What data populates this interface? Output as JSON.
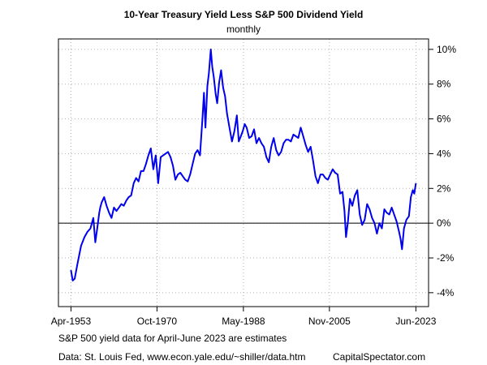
{
  "chart_data": {
    "type": "line",
    "title": "10-Year Treasury Yield Less S&P 500 Dividend Yield",
    "subtitle": "monthly",
    "xlabel": "",
    "ylabel": "",
    "x_ticks": [
      {
        "label": "Apr-1953",
        "year": 1953.25
      },
      {
        "label": "Oct-1970",
        "year": 1970.75
      },
      {
        "label": "May-1988",
        "year": 1988.33
      },
      {
        "label": "Nov-2005",
        "year": 2005.83
      },
      {
        "label": "Jun-2023",
        "year": 2023.42
      }
    ],
    "y_ticks": [
      {
        "label": "10%",
        "value": 10
      },
      {
        "label": "8%",
        "value": 8
      },
      {
        "label": "6%",
        "value": 6
      },
      {
        "label": "4%",
        "value": 4
      },
      {
        "label": "2%",
        "value": 2
      },
      {
        "label": "0%",
        "value": 0
      },
      {
        "label": "-2%",
        "value": -2
      },
      {
        "label": "-4%",
        "value": -4
      }
    ],
    "xlim": [
      1950.7,
      2026.0
    ],
    "ylim": [
      -4.8,
      10.6
    ],
    "grid": true,
    "axis_side": "right",
    "reference_line": 0,
    "line_color": "#0000ee",
    "series": [
      {
        "x": [
          1953.25,
          1953.6,
          1954.0,
          1954.6,
          1955.3,
          1956.0,
          1956.6,
          1957.2,
          1957.8,
          1958.2,
          1958.6,
          1959.0,
          1959.2,
          1959.5,
          1960.0,
          1960.5,
          1961.0,
          1961.5,
          1962.0,
          1962.5,
          1963.0,
          1963.5,
          1964.0,
          1964.5,
          1965.0,
          1965.5,
          1966.0,
          1966.5,
          1967.0,
          1967.5,
          1968.0,
          1968.5,
          1969.0,
          1969.5,
          1970.0,
          1970.5,
          1971.0,
          1971.5,
          1972.0,
          1972.5,
          1973.0,
          1973.5,
          1974.0,
          1974.5,
          1975.0,
          1975.5,
          1976.0,
          1976.5,
          1977.0,
          1977.5,
          1978.0,
          1978.5,
          1979.0,
          1979.5,
          1980.0,
          1980.3,
          1980.6,
          1981.0,
          1981.3,
          1981.7,
          1982.0,
          1982.3,
          1982.7,
          1983.0,
          1983.4,
          1983.8,
          1984.2,
          1984.6,
          1985.0,
          1985.5,
          1986.0,
          1986.5,
          1987.0,
          1987.4,
          1987.8,
          1988.2,
          1988.6,
          1989.0,
          1989.5,
          1990.0,
          1990.5,
          1991.0,
          1991.5,
          1992.0,
          1992.5,
          1993.0,
          1993.5,
          1994.0,
          1994.5,
          1995.0,
          1995.5,
          1996.0,
          1996.5,
          1997.0,
          1997.5,
          1998.0,
          1998.5,
          1999.0,
          1999.5,
          2000.0,
          2000.5,
          2001.0,
          2001.5,
          2002.0,
          2002.5,
          2003.0,
          2003.5,
          2004.0,
          2004.5,
          2005.0,
          2005.5,
          2006.0,
          2006.5,
          2007.0,
          2007.5,
          2008.0,
          2008.5,
          2008.9,
          2009.2,
          2009.6,
          2010.0,
          2010.5,
          2011.0,
          2011.5,
          2012.0,
          2012.5,
          2013.0,
          2013.5,
          2014.0,
          2014.5,
          2015.0,
          2015.5,
          2016.0,
          2016.5,
          2017.0,
          2017.5,
          2018.0,
          2018.5,
          2019.0,
          2019.5,
          2020.0,
          2020.3,
          2020.6,
          2021.0,
          2021.5,
          2022.0,
          2022.4,
          2022.8,
          2023.1,
          2023.42
        ],
        "values": [
          -2.7,
          -3.3,
          -3.2,
          -2.3,
          -1.3,
          -0.8,
          -0.5,
          -0.3,
          0.3,
          -1.1,
          -0.3,
          0.6,
          0.9,
          1.2,
          1.5,
          1.0,
          0.6,
          0.3,
          0.9,
          0.7,
          0.9,
          1.1,
          1.0,
          1.3,
          1.5,
          1.6,
          2.3,
          2.6,
          2.4,
          3.0,
          3.0,
          3.4,
          3.9,
          4.3,
          3.1,
          3.9,
          2.3,
          3.8,
          3.9,
          4.0,
          4.1,
          3.8,
          3.3,
          2.5,
          2.8,
          2.9,
          2.7,
          2.5,
          2.4,
          2.8,
          3.4,
          4.0,
          4.2,
          3.9,
          6.0,
          7.5,
          5.5,
          7.9,
          8.6,
          10.0,
          9.0,
          8.4,
          7.4,
          6.9,
          8.1,
          8.8,
          7.8,
          7.3,
          6.3,
          5.5,
          4.7,
          5.3,
          6.2,
          4.7,
          5.0,
          5.3,
          5.7,
          5.5,
          4.9,
          5.0,
          5.4,
          4.6,
          4.9,
          4.6,
          4.4,
          3.8,
          3.5,
          4.4,
          4.9,
          4.2,
          3.9,
          4.1,
          4.6,
          4.8,
          4.8,
          4.7,
          5.1,
          5.0,
          4.9,
          5.5,
          5.0,
          4.5,
          4.1,
          4.4,
          3.6,
          2.7,
          2.3,
          2.8,
          2.8,
          2.6,
          2.5,
          2.8,
          3.1,
          2.9,
          2.8,
          1.7,
          1.8,
          0.7,
          -0.8,
          0.1,
          1.4,
          1.0,
          1.6,
          1.9,
          0.5,
          -0.1,
          0.2,
          1.1,
          0.8,
          0.3,
          0.0,
          -0.6,
          0.0,
          -0.3,
          0.8,
          0.6,
          0.5,
          0.9,
          0.5,
          0.1,
          -0.5,
          -0.9,
          -1.5,
          -0.3,
          0.2,
          0.4,
          1.5,
          1.9,
          1.7,
          2.3
        ]
      }
    ]
  },
  "notes": {
    "estimate": "S&P 500 yield data for April-June 2023 are estimates",
    "source": "Data: St. Louis Fed, www.econ.yale.edu/~shiller/data.htm",
    "brand": "CapitalSpectator.com"
  }
}
